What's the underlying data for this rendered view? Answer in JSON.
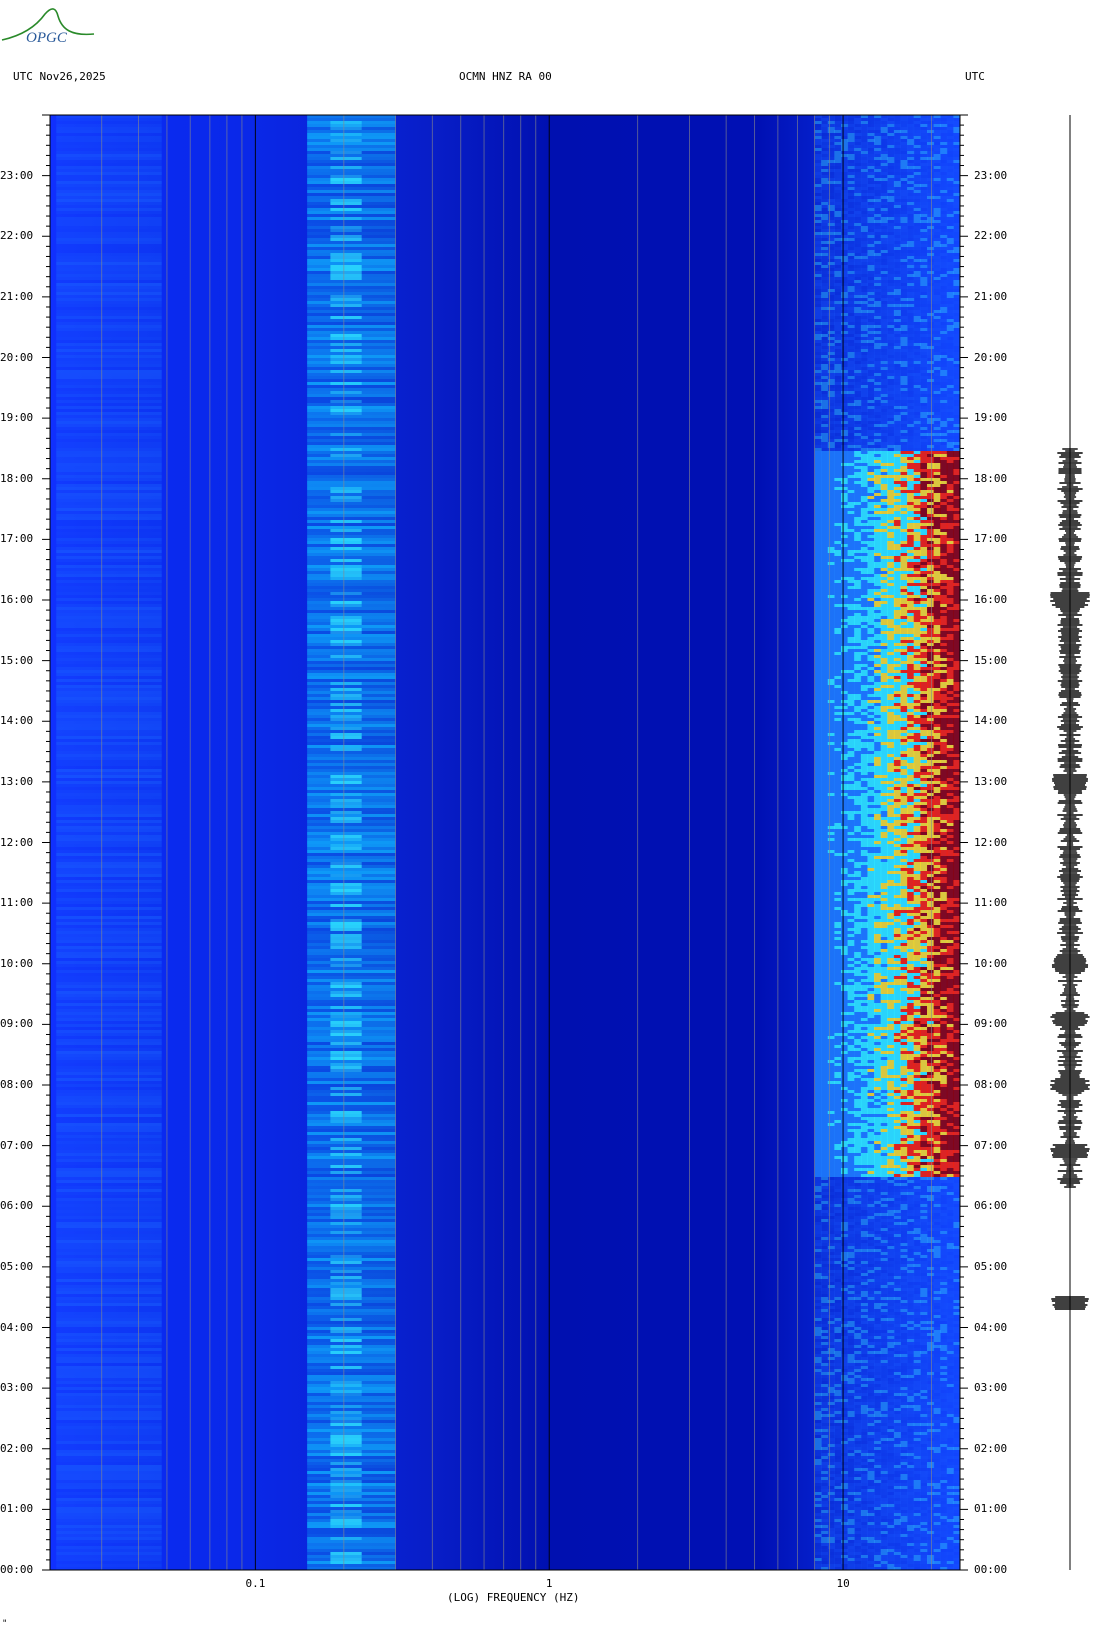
{
  "header": {
    "left": "UTC  Nov26,2025",
    "center": "OCMN HNZ RA 00",
    "right": "UTC"
  },
  "logo": {
    "text": "OPGC"
  },
  "colors": {
    "background": "#0000a8",
    "low_energy": "#1030ff",
    "mid_energy": "#20d0ff",
    "high_energy": "#ffe020",
    "peak_energy": "#900000"
  },
  "chart_data": {
    "type": "heatmap",
    "title": "OCMN HNZ RA 00",
    "xlabel": "(LOG) FREQUENCY (HZ)",
    "x_scale": "log",
    "xlim": [
      0.02,
      25
    ],
    "x_tick_labels": [
      {
        "value": 0.1,
        "label": "0.1"
      },
      {
        "value": 1,
        "label": "1"
      },
      {
        "value": 10,
        "label": "10"
      }
    ],
    "ylabel": "UTC",
    "ylim_hours": [
      0,
      24
    ],
    "y_tick_labels": [
      "00:00",
      "01:00",
      "02:00",
      "03:00",
      "04:00",
      "05:00",
      "06:00",
      "07:00",
      "08:00",
      "09:00",
      "10:00",
      "11:00",
      "12:00",
      "13:00",
      "14:00",
      "15:00",
      "16:00",
      "17:00",
      "18:00",
      "19:00",
      "20:00",
      "21:00",
      "22:00",
      "23:00"
    ],
    "microseism_band_hz": [
      0.15,
      0.3
    ],
    "high_noise_band_hz": [
      8,
      25
    ],
    "high_noise_hours": [
      6.5,
      18.5
    ],
    "notable_events_hours": [
      4.4,
      6.9,
      8.0,
      9.1,
      10.0,
      13.0,
      16.0
    ],
    "seismogram_trace": "right"
  },
  "footer_mark": "\""
}
